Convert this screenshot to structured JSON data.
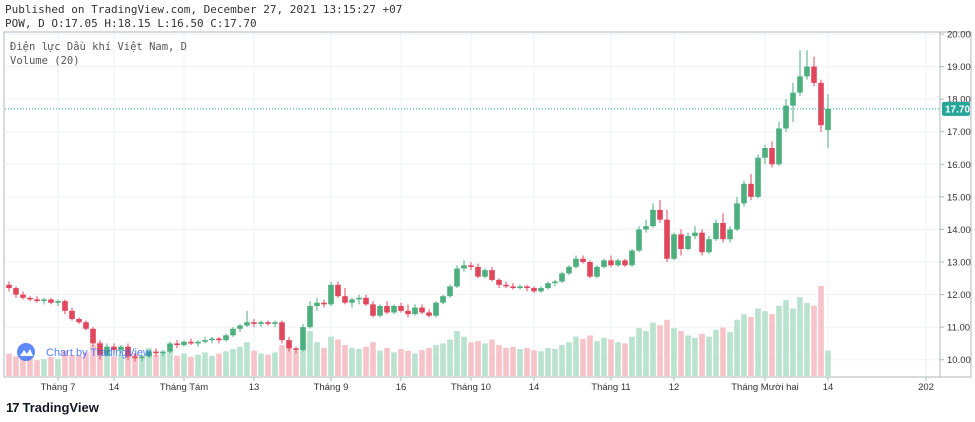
{
  "header": {
    "published": "Published on TradingView.com, December 27, 2021 13:15:27 +07",
    "ohlc": "POW, D O:17.05 H:18.15 L:16.50 C:17.70"
  },
  "legend": {
    "symbol": "Điện lực Dầu khí Việt Nam, D",
    "volume": "Volume (20)"
  },
  "watermark": "Chart by TradingView",
  "footer_brand": "TradingView",
  "colors": {
    "up": "#26a69a",
    "down": "#ef5350",
    "up_body": "#4caf7d",
    "down_body": "#e0475c",
    "vol_up": "#b9e3cf",
    "vol_down": "#f6c3c9",
    "price_line": "#26a69a"
  },
  "chart_data": {
    "type": "candlestick",
    "y_axis": {
      "min": 9.5,
      "max": 20.0,
      "ticks": [
        "20.00",
        "19.00",
        "18.00",
        "17.00",
        "16.00",
        "15.00",
        "14.00",
        "13.00",
        "12.00",
        "11.00",
        "10.00"
      ]
    },
    "last_price_label": "17.70",
    "last_price": 17.7,
    "x_ticks": [
      {
        "label": "Tháng 7",
        "i": 7
      },
      {
        "label": "14",
        "i": 15
      },
      {
        "label": "Tháng Tám",
        "i": 25
      },
      {
        "label": "13",
        "i": 35
      },
      {
        "label": "Tháng 9",
        "i": 46
      },
      {
        "label": "16",
        "i": 56
      },
      {
        "label": "Tháng 10",
        "i": 66
      },
      {
        "label": "14",
        "i": 75
      },
      {
        "label": "Tháng 11",
        "i": 86
      },
      {
        "label": "12",
        "i": 95
      },
      {
        "label": "Tháng Mười hai",
        "i": 108
      },
      {
        "label": "14",
        "i": 117
      },
      {
        "label": "202",
        "i": 131
      }
    ],
    "ohlc": [
      [
        12.3,
        12.4,
        12.1,
        12.2
      ],
      [
        12.2,
        12.25,
        11.9,
        12.0
      ],
      [
        12.0,
        12.1,
        11.85,
        11.9
      ],
      [
        11.9,
        11.95,
        11.8,
        11.85
      ],
      [
        11.85,
        11.95,
        11.75,
        11.8
      ],
      [
        11.8,
        11.9,
        11.7,
        11.85
      ],
      [
        11.85,
        11.9,
        11.7,
        11.75
      ],
      [
        11.75,
        11.85,
        11.65,
        11.8
      ],
      [
        11.8,
        11.85,
        11.4,
        11.5
      ],
      [
        11.5,
        11.6,
        11.2,
        11.25
      ],
      [
        11.25,
        11.3,
        11.1,
        11.15
      ],
      [
        11.15,
        11.2,
        10.9,
        10.95
      ],
      [
        10.95,
        11.0,
        10.4,
        10.5
      ],
      [
        10.5,
        10.6,
        10.0,
        10.15
      ],
      [
        10.15,
        10.5,
        10.1,
        10.4
      ],
      [
        10.4,
        10.5,
        10.2,
        10.3
      ],
      [
        10.3,
        10.45,
        10.2,
        10.4
      ],
      [
        10.4,
        10.5,
        10.0,
        10.1
      ],
      [
        10.1,
        10.2,
        9.95,
        10.05
      ],
      [
        10.05,
        10.15,
        9.95,
        10.1
      ],
      [
        10.1,
        10.3,
        10.05,
        10.25
      ],
      [
        10.25,
        10.35,
        10.1,
        10.2
      ],
      [
        10.2,
        10.3,
        10.1,
        10.25
      ],
      [
        10.25,
        10.55,
        10.2,
        10.5
      ],
      [
        10.5,
        10.6,
        10.35,
        10.45
      ],
      [
        10.45,
        10.6,
        10.4,
        10.55
      ],
      [
        10.55,
        10.65,
        10.45,
        10.5
      ],
      [
        10.5,
        10.6,
        10.4,
        10.55
      ],
      [
        10.55,
        10.7,
        10.5,
        10.6
      ],
      [
        10.6,
        10.7,
        10.5,
        10.65
      ],
      [
        10.65,
        10.7,
        10.5,
        10.6
      ],
      [
        10.6,
        10.8,
        10.55,
        10.75
      ],
      [
        10.75,
        11.0,
        10.7,
        10.95
      ],
      [
        10.95,
        11.1,
        10.85,
        11.05
      ],
      [
        11.05,
        11.5,
        11.0,
        11.15
      ],
      [
        11.15,
        11.25,
        11.0,
        11.1
      ],
      [
        11.1,
        11.2,
        11.0,
        11.15
      ],
      [
        11.15,
        11.2,
        11.05,
        11.1
      ],
      [
        11.1,
        11.2,
        11.0,
        11.15
      ],
      [
        11.15,
        11.2,
        10.5,
        10.6
      ],
      [
        10.6,
        10.7,
        10.25,
        10.35
      ],
      [
        10.35,
        10.4,
        10.2,
        10.3
      ],
      [
        10.3,
        11.1,
        10.25,
        11.0
      ],
      [
        11.0,
        11.8,
        10.95,
        11.65
      ],
      [
        11.65,
        11.9,
        11.5,
        11.75
      ],
      [
        11.75,
        11.85,
        11.6,
        11.7
      ],
      [
        11.7,
        12.4,
        11.65,
        12.3
      ],
      [
        12.3,
        12.4,
        11.9,
        11.95
      ],
      [
        11.95,
        12.2,
        11.7,
        11.75
      ],
      [
        11.75,
        11.9,
        11.6,
        11.85
      ],
      [
        11.85,
        12.0,
        11.7,
        11.9
      ],
      [
        11.9,
        12.0,
        11.65,
        11.7
      ],
      [
        11.7,
        11.8,
        11.3,
        11.35
      ],
      [
        11.35,
        11.7,
        11.3,
        11.65
      ],
      [
        11.65,
        11.8,
        11.4,
        11.45
      ],
      [
        11.45,
        11.7,
        11.4,
        11.65
      ],
      [
        11.65,
        11.75,
        11.45,
        11.5
      ],
      [
        11.5,
        11.7,
        11.3,
        11.4
      ],
      [
        11.4,
        11.7,
        11.35,
        11.6
      ],
      [
        11.6,
        11.7,
        11.4,
        11.45
      ],
      [
        11.45,
        11.55,
        11.3,
        11.35
      ],
      [
        11.35,
        11.8,
        11.3,
        11.75
      ],
      [
        11.75,
        12.0,
        11.7,
        11.95
      ],
      [
        11.95,
        12.3,
        11.9,
        12.25
      ],
      [
        12.25,
        12.9,
        12.2,
        12.8
      ],
      [
        12.8,
        13.05,
        12.7,
        12.9
      ],
      [
        12.9,
        13.0,
        12.75,
        12.85
      ],
      [
        12.85,
        12.95,
        12.5,
        12.55
      ],
      [
        12.55,
        12.8,
        12.5,
        12.75
      ],
      [
        12.75,
        12.85,
        12.4,
        12.45
      ],
      [
        12.45,
        12.5,
        12.2,
        12.3
      ],
      [
        12.3,
        12.4,
        12.2,
        12.25
      ],
      [
        12.25,
        12.35,
        12.15,
        12.2
      ],
      [
        12.2,
        12.3,
        12.15,
        12.25
      ],
      [
        12.25,
        12.3,
        12.1,
        12.2
      ],
      [
        12.2,
        12.25,
        12.05,
        12.1
      ],
      [
        12.1,
        12.25,
        12.05,
        12.2
      ],
      [
        12.2,
        12.4,
        12.15,
        12.35
      ],
      [
        12.35,
        12.45,
        12.25,
        12.4
      ],
      [
        12.4,
        12.7,
        12.35,
        12.65
      ],
      [
        12.65,
        12.9,
        12.6,
        12.85
      ],
      [
        12.85,
        13.2,
        12.8,
        13.1
      ],
      [
        13.1,
        13.2,
        12.95,
        13.0
      ],
      [
        13.0,
        13.05,
        12.5,
        12.55
      ],
      [
        12.55,
        12.9,
        12.5,
        12.85
      ],
      [
        12.85,
        13.1,
        12.8,
        13.05
      ],
      [
        13.05,
        13.2,
        12.85,
        12.9
      ],
      [
        12.9,
        13.1,
        12.85,
        13.05
      ],
      [
        13.05,
        13.1,
        12.85,
        12.9
      ],
      [
        12.9,
        13.4,
        12.85,
        13.35
      ],
      [
        13.35,
        14.1,
        13.3,
        14.0
      ],
      [
        14.0,
        14.3,
        13.9,
        14.1
      ],
      [
        14.1,
        14.8,
        14.05,
        14.6
      ],
      [
        14.6,
        14.9,
        14.2,
        14.3
      ],
      [
        14.3,
        14.6,
        13.0,
        13.1
      ],
      [
        13.1,
        13.9,
        13.05,
        13.85
      ],
      [
        13.85,
        14.0,
        13.2,
        13.4
      ],
      [
        13.4,
        13.9,
        13.35,
        13.8
      ],
      [
        13.8,
        14.1,
        13.7,
        13.9
      ],
      [
        13.9,
        14.0,
        13.2,
        13.3
      ],
      [
        13.3,
        13.8,
        13.25,
        13.7
      ],
      [
        13.7,
        14.3,
        13.65,
        14.2
      ],
      [
        14.2,
        14.5,
        13.6,
        13.7
      ],
      [
        13.7,
        14.1,
        13.6,
        14.0
      ],
      [
        14.0,
        15.0,
        13.95,
        14.8
      ],
      [
        14.8,
        15.5,
        14.7,
        15.4
      ],
      [
        15.4,
        15.7,
        14.9,
        15.0
      ],
      [
        15.0,
        16.3,
        14.95,
        16.2
      ],
      [
        16.2,
        16.6,
        16.0,
        16.5
      ],
      [
        16.5,
        16.7,
        15.9,
        16.0
      ],
      [
        16.0,
        17.3,
        15.95,
        17.1
      ],
      [
        17.1,
        18.0,
        17.0,
        17.8
      ],
      [
        17.8,
        18.5,
        17.3,
        18.2
      ],
      [
        18.2,
        19.5,
        18.1,
        18.7
      ],
      [
        18.7,
        19.5,
        18.6,
        19.0
      ],
      [
        19.0,
        19.3,
        18.4,
        18.5
      ],
      [
        18.5,
        18.6,
        17.0,
        17.2
      ],
      [
        17.05,
        18.15,
        16.5,
        17.7
      ]
    ],
    "volume": [
      0.4,
      0.35,
      0.3,
      0.32,
      0.28,
      0.3,
      0.34,
      0.3,
      0.45,
      0.38,
      0.36,
      0.42,
      0.55,
      0.6,
      0.4,
      0.35,
      0.38,
      0.45,
      0.4,
      0.35,
      0.5,
      0.38,
      0.42,
      0.48,
      0.36,
      0.4,
      0.34,
      0.38,
      0.42,
      0.36,
      0.4,
      0.44,
      0.48,
      0.52,
      0.6,
      0.45,
      0.4,
      0.38,
      0.42,
      0.55,
      0.5,
      0.45,
      0.62,
      0.8,
      0.6,
      0.5,
      0.7,
      0.65,
      0.55,
      0.5,
      0.48,
      0.52,
      0.6,
      0.45,
      0.5,
      0.42,
      0.48,
      0.45,
      0.4,
      0.46,
      0.5,
      0.55,
      0.58,
      0.65,
      0.8,
      0.7,
      0.6,
      0.62,
      0.58,
      0.65,
      0.55,
      0.5,
      0.52,
      0.48,
      0.5,
      0.46,
      0.44,
      0.5,
      0.48,
      0.55,
      0.6,
      0.7,
      0.66,
      0.72,
      0.62,
      0.68,
      0.65,
      0.6,
      0.58,
      0.7,
      0.85,
      0.8,
      0.95,
      0.9,
      1.0,
      0.85,
      0.8,
      0.72,
      0.68,
      0.75,
      0.7,
      0.82,
      0.86,
      0.78,
      1.0,
      1.1,
      1.05,
      1.2,
      1.15,
      1.1,
      1.25,
      1.35,
      1.2,
      1.4,
      1.3,
      1.25,
      1.6,
      0.45
    ]
  }
}
